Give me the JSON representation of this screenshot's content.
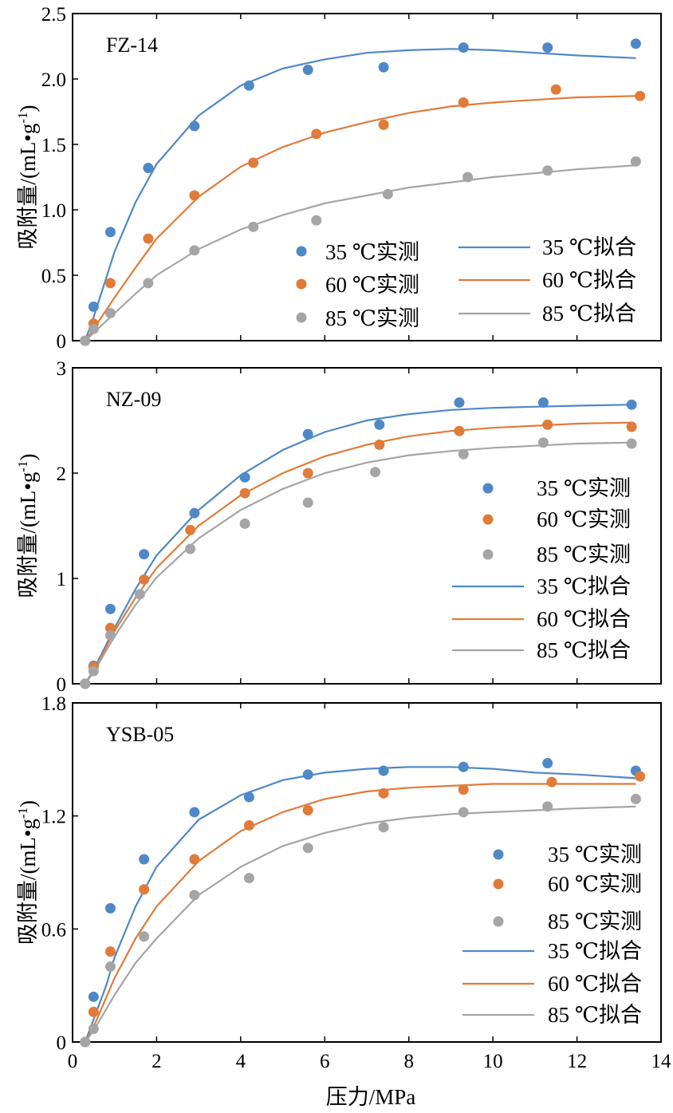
{
  "colors": {
    "35": "#4f88c6",
    "60": "#e07b39",
    "85": "#a5a5a5"
  },
  "x_axis": {
    "label": "压力/MPa",
    "ticks": [
      0,
      2,
      4,
      6,
      8,
      10,
      12,
      14
    ],
    "range": [
      0,
      14
    ]
  },
  "y_label": {
    "main": "吸附量/(mL•g",
    "sup": "-1",
    "close": ")"
  },
  "chart_data": [
    {
      "type": "scatter",
      "title": "FZ-14",
      "ylim": [
        0,
        2.5
      ],
      "yticks": [
        "0",
        "0.5",
        "1.0",
        "1.5",
        "2.0",
        "2.5"
      ],
      "ytick_values": [
        0,
        0.5,
        1.0,
        1.5,
        2.0,
        2.5
      ],
      "legend": [
        "35 ℃实测",
        "60 ℃实测",
        "85 ℃实测",
        "35 ℃拟合",
        "60 ℃拟合",
        "85 ℃拟合"
      ],
      "series": [
        {
          "name": "35 ℃实测",
          "kind": "scatter",
          "temp": "35",
          "x": [
            0.3,
            0.5,
            0.9,
            1.8,
            2.9,
            4.2,
            5.6,
            7.4,
            9.3,
            11.3,
            13.4
          ],
          "y": [
            0,
            0.26,
            0.83,
            1.32,
            1.64,
            1.95,
            2.07,
            2.09,
            2.24,
            2.24,
            2.27
          ]
        },
        {
          "name": "60 ℃实测",
          "kind": "scatter",
          "temp": "60",
          "x": [
            0.3,
            0.5,
            0.9,
            1.8,
            2.9,
            4.3,
            5.8,
            7.4,
            9.3,
            11.5,
            13.5
          ],
          "y": [
            0,
            0.13,
            0.44,
            0.78,
            1.11,
            1.36,
            1.58,
            1.65,
            1.82,
            1.92,
            1.87
          ]
        },
        {
          "name": "85 ℃实测",
          "kind": "scatter",
          "temp": "85",
          "x": [
            0.3,
            0.5,
            0.9,
            1.8,
            2.9,
            4.3,
            5.8,
            7.5,
            9.4,
            11.3,
            13.4
          ],
          "y": [
            0,
            0.09,
            0.21,
            0.44,
            0.69,
            0.87,
            0.92,
            1.12,
            1.25,
            1.3,
            1.37
          ]
        },
        {
          "name": "35 ℃拟合",
          "kind": "line",
          "temp": "35",
          "x": [
            0.3,
            0.5,
            0.8,
            1.0,
            1.5,
            2.0,
            3.0,
            4.0,
            5.0,
            6.0,
            7.0,
            8.0,
            9.0,
            10.0,
            11.0,
            12.0,
            13.4
          ],
          "y": [
            0.0,
            0.18,
            0.48,
            0.68,
            1.06,
            1.35,
            1.72,
            1.95,
            2.08,
            2.15,
            2.2,
            2.22,
            2.23,
            2.22,
            2.2,
            2.18,
            2.16
          ]
        },
        {
          "name": "60 ℃拟合",
          "kind": "line",
          "temp": "60",
          "x": [
            0.3,
            0.5,
            1.0,
            1.5,
            2.0,
            3.0,
            4.0,
            5.0,
            6.0,
            7.0,
            8.0,
            9.0,
            10.0,
            11.0,
            12.0,
            13.4
          ],
          "y": [
            0.0,
            0.09,
            0.33,
            0.56,
            0.78,
            1.1,
            1.33,
            1.48,
            1.59,
            1.67,
            1.74,
            1.79,
            1.82,
            1.84,
            1.86,
            1.87
          ]
        },
        {
          "name": "85 ℃拟合",
          "kind": "line",
          "temp": "85",
          "x": [
            0.3,
            0.5,
            1.0,
            1.5,
            2.0,
            3.0,
            4.0,
            5.0,
            6.0,
            7.0,
            8.0,
            9.0,
            10.0,
            11.0,
            12.0,
            13.4
          ],
          "y": [
            0.0,
            0.06,
            0.21,
            0.36,
            0.5,
            0.7,
            0.85,
            0.96,
            1.05,
            1.11,
            1.17,
            1.21,
            1.25,
            1.28,
            1.31,
            1.34
          ]
        }
      ]
    },
    {
      "type": "scatter",
      "title": "NZ-09",
      "ylim": [
        0,
        3
      ],
      "yticks": [
        "0",
        "1",
        "2",
        "3"
      ],
      "ytick_values": [
        0,
        1,
        2,
        3
      ],
      "legend": [
        "35 ℃实测",
        "60 ℃实测",
        "85 ℃实测",
        "35 ℃拟合",
        "60 ℃拟合",
        "85 ℃拟合"
      ],
      "series": [
        {
          "name": "35 ℃实测",
          "kind": "scatter",
          "temp": "35",
          "x": [
            0.3,
            0.5,
            0.9,
            1.7,
            2.9,
            4.1,
            5.6,
            7.3,
            9.2,
            11.2,
            13.3
          ],
          "y": [
            0,
            0.17,
            0.71,
            1.23,
            1.62,
            1.96,
            2.37,
            2.46,
            2.67,
            2.67,
            2.65
          ]
        },
        {
          "name": "60 ℃实测",
          "kind": "scatter",
          "temp": "60",
          "x": [
            0.3,
            0.5,
            0.9,
            1.7,
            2.8,
            4.1,
            5.6,
            7.3,
            9.2,
            11.3,
            13.3
          ],
          "y": [
            0,
            0.16,
            0.53,
            0.99,
            1.46,
            1.81,
            2.0,
            2.27,
            2.4,
            2.46,
            2.44
          ]
        },
        {
          "name": "85 ℃实测",
          "kind": "scatter",
          "temp": "85",
          "x": [
            0.3,
            0.5,
            0.9,
            1.6,
            2.8,
            4.1,
            5.6,
            7.2,
            9.3,
            11.2,
            13.3
          ],
          "y": [
            0,
            0.12,
            0.46,
            0.85,
            1.28,
            1.52,
            1.72,
            2.01,
            2.18,
            2.29,
            2.28
          ]
        },
        {
          "name": "35 ℃拟合",
          "kind": "line",
          "temp": "35",
          "x": [
            0.3,
            0.5,
            1.0,
            1.5,
            2.0,
            3.0,
            4.0,
            5.0,
            6.0,
            7.0,
            8.0,
            9.0,
            10.0,
            11.0,
            12.0,
            13.3
          ],
          "y": [
            0.0,
            0.13,
            0.53,
            0.9,
            1.22,
            1.65,
            1.98,
            2.22,
            2.39,
            2.5,
            2.56,
            2.6,
            2.62,
            2.63,
            2.64,
            2.65
          ]
        },
        {
          "name": "60 ℃拟合",
          "kind": "line",
          "temp": "60",
          "x": [
            0.3,
            0.5,
            1.0,
            1.5,
            2.0,
            3.0,
            4.0,
            5.0,
            6.0,
            7.0,
            8.0,
            9.0,
            10.0,
            11.0,
            12.0,
            13.3
          ],
          "y": [
            0.0,
            0.12,
            0.5,
            0.82,
            1.1,
            1.5,
            1.79,
            2.0,
            2.16,
            2.27,
            2.35,
            2.4,
            2.43,
            2.45,
            2.47,
            2.48
          ]
        },
        {
          "name": "85 ℃拟合",
          "kind": "line",
          "temp": "85",
          "x": [
            0.3,
            0.5,
            1.0,
            1.5,
            2.0,
            3.0,
            4.0,
            5.0,
            6.0,
            7.0,
            8.0,
            9.0,
            10.0,
            11.0,
            12.0,
            13.3
          ],
          "y": [
            0.0,
            0.11,
            0.45,
            0.75,
            1.01,
            1.38,
            1.65,
            1.85,
            2.0,
            2.1,
            2.17,
            2.21,
            2.24,
            2.26,
            2.28,
            2.29
          ]
        }
      ]
    },
    {
      "type": "scatter",
      "title": "YSB-05",
      "ylim": [
        0,
        1.8
      ],
      "yticks": [
        "0",
        "0.6",
        "1.2",
        "1.8"
      ],
      "ytick_values": [
        0,
        0.6,
        1.2,
        1.8
      ],
      "legend": [
        "35 ℃实测",
        "60 ℃实测",
        "85 ℃实测",
        "35 ℃拟合",
        "60 ℃拟合",
        "85 ℃拟合"
      ],
      "series": [
        {
          "name": "35 ℃实测",
          "kind": "scatter",
          "temp": "35",
          "x": [
            0.3,
            0.5,
            0.9,
            1.7,
            2.9,
            4.2,
            5.6,
            7.4,
            9.3,
            11.3,
            13.4
          ],
          "y": [
            0,
            0.24,
            0.71,
            0.97,
            1.22,
            1.3,
            1.42,
            1.44,
            1.46,
            1.48,
            1.44
          ]
        },
        {
          "name": "60 ℃实测",
          "kind": "scatter",
          "temp": "60",
          "x": [
            0.3,
            0.5,
            0.9,
            1.7,
            2.9,
            4.2,
            5.6,
            7.4,
            9.3,
            11.4,
            13.5
          ],
          "y": [
            0,
            0.16,
            0.48,
            0.81,
            0.97,
            1.15,
            1.23,
            1.32,
            1.34,
            1.38,
            1.41
          ]
        },
        {
          "name": "85 ℃实测",
          "kind": "scatter",
          "temp": "85",
          "x": [
            0.3,
            0.5,
            0.9,
            1.7,
            2.9,
            4.2,
            5.6,
            7.4,
            9.3,
            11.3,
            13.4
          ],
          "y": [
            0,
            0.07,
            0.4,
            0.56,
            0.78,
            0.87,
            1.03,
            1.14,
            1.22,
            1.25,
            1.29
          ]
        },
        {
          "name": "35 ℃拟合",
          "kind": "line",
          "temp": "35",
          "x": [
            0.3,
            0.5,
            0.8,
            1.0,
            1.5,
            2.0,
            3.0,
            4.0,
            5.0,
            6.0,
            7.0,
            8.0,
            9.0,
            10.0,
            11.0,
            12.0,
            13.4
          ],
          "y": [
            0.0,
            0.12,
            0.3,
            0.45,
            0.72,
            0.93,
            1.18,
            1.31,
            1.39,
            1.43,
            1.45,
            1.46,
            1.46,
            1.45,
            1.43,
            1.42,
            1.4
          ]
        },
        {
          "name": "60 ℃拟合",
          "kind": "line",
          "temp": "60",
          "x": [
            0.3,
            0.5,
            1.0,
            1.5,
            2.0,
            3.0,
            4.0,
            5.0,
            6.0,
            7.0,
            8.0,
            9.0,
            10.0,
            11.0,
            12.0,
            13.4
          ],
          "y": [
            0.0,
            0.08,
            0.34,
            0.55,
            0.72,
            0.96,
            1.12,
            1.22,
            1.29,
            1.33,
            1.35,
            1.36,
            1.37,
            1.37,
            1.37,
            1.37
          ]
        },
        {
          "name": "85 ℃拟合",
          "kind": "line",
          "temp": "85",
          "x": [
            0.3,
            0.5,
            1.0,
            1.5,
            2.0,
            3.0,
            4.0,
            5.0,
            6.0,
            7.0,
            8.0,
            9.0,
            10.0,
            11.0,
            12.0,
            13.4
          ],
          "y": [
            0.0,
            0.06,
            0.25,
            0.42,
            0.55,
            0.78,
            0.93,
            1.04,
            1.11,
            1.16,
            1.19,
            1.21,
            1.22,
            1.23,
            1.24,
            1.25
          ]
        }
      ]
    }
  ]
}
